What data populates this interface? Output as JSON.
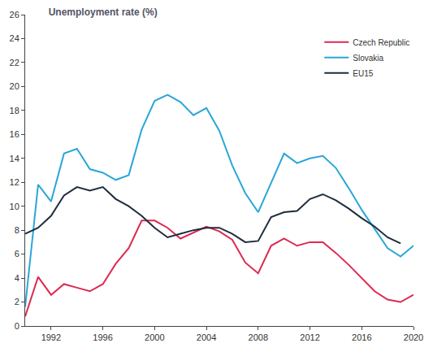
{
  "chart_data": {
    "type": "line",
    "title": "Unemployment rate (%)",
    "x": [
      1990,
      1991,
      1992,
      1993,
      1994,
      1995,
      1996,
      1997,
      1998,
      1999,
      2000,
      2001,
      2002,
      2003,
      2004,
      2005,
      2006,
      2007,
      2008,
      2009,
      2010,
      2011,
      2012,
      2013,
      2014,
      2015,
      2016,
      2017,
      2018,
      2019,
      2020
    ],
    "series": [
      {
        "name": "Czech Republic",
        "color": "#dc2a50",
        "values": [
          0.8,
          4.1,
          2.6,
          3.5,
          3.2,
          2.9,
          3.5,
          5.2,
          6.5,
          8.8,
          8.8,
          8.2,
          7.3,
          7.8,
          8.3,
          7.9,
          7.2,
          5.3,
          4.4,
          6.7,
          7.3,
          6.7,
          7.0,
          7.0,
          6.1,
          5.1,
          4.0,
          2.9,
          2.2,
          2.0,
          2.6
        ]
      },
      {
        "name": "Slovakia",
        "color": "#2aa7d6",
        "values": [
          1.6,
          11.8,
          10.4,
          14.4,
          14.8,
          13.1,
          12.8,
          12.2,
          12.6,
          16.4,
          18.8,
          19.3,
          18.7,
          17.6,
          18.2,
          16.3,
          13.4,
          11.1,
          9.5,
          12.0,
          14.4,
          13.6,
          14.0,
          14.2,
          13.2,
          11.5,
          9.7,
          8.1,
          6.5,
          5.8,
          6.7
        ]
      },
      {
        "name": "EU15",
        "color": "#1f2d3d",
        "values": [
          7.7,
          8.2,
          9.2,
          10.9,
          11.6,
          11.3,
          11.6,
          10.6,
          10.0,
          9.2,
          8.2,
          7.4,
          7.7,
          8.0,
          8.2,
          8.2,
          7.7,
          7.0,
          7.1,
          9.1,
          9.5,
          9.6,
          10.6,
          11.0,
          10.5,
          9.8,
          9.0,
          8.3,
          7.4,
          6.9,
          null
        ]
      }
    ],
    "xlim": [
      1990,
      2020
    ],
    "xticks": [
      1992,
      1996,
      2000,
      2004,
      2008,
      2012,
      2016,
      2020
    ],
    "ylim": [
      0,
      26
    ],
    "yticks": [
      0,
      2,
      4,
      6,
      8,
      10,
      12,
      14,
      16,
      18,
      20,
      22,
      24,
      26
    ],
    "grid": false,
    "legend": "top right"
  }
}
